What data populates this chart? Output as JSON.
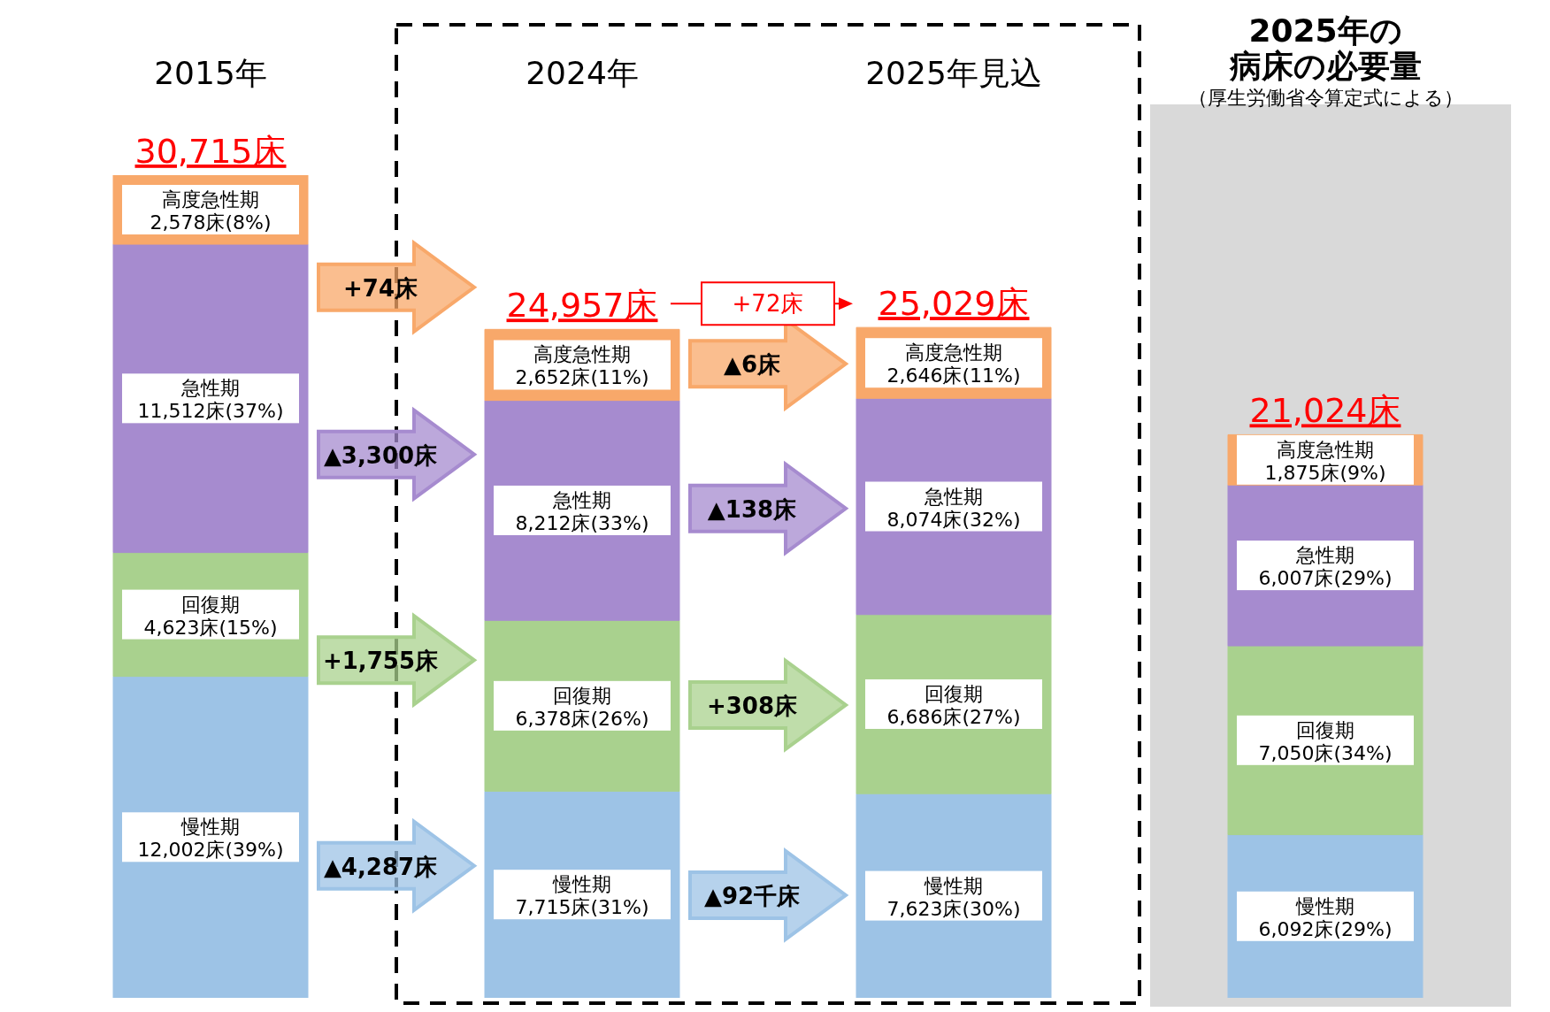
{
  "chart_data": {
    "type": "bar",
    "stacked": true,
    "categories": [
      "2015年",
      "2024年",
      "2025年見込",
      "2025年の病床の必要量"
    ],
    "series": [
      {
        "name": "慢性期",
        "color": "#9dc3e6",
        "values": [
          12002,
          7715,
          7623,
          6092
        ],
        "value_labels": [
          "12,002床(39%)",
          "7,715床(31%)",
          "7,623床(30%)",
          "6,092床(29%)"
        ]
      },
      {
        "name": "回復期",
        "color": "#a9d18e",
        "values": [
          4623,
          6378,
          6686,
          7050
        ],
        "value_labels": [
          "4,623床(15%)",
          "6,378床(26%)",
          "6,686床(27%)",
          "7,050床(34%)"
        ]
      },
      {
        "name": "急性期",
        "color": "#a68bcf",
        "values": [
          11512,
          8212,
          8074,
          6007
        ],
        "value_labels": [
          "11,512床(37%)",
          "8,212床(33%)",
          "8,074床(32%)",
          "6,007床(29%)"
        ]
      },
      {
        "name": "高度急性期",
        "color": "#f8a86a",
        "values": [
          2578,
          2652,
          2646,
          1875
        ],
        "value_labels": [
          "2,578床(8%)",
          "2,652床(11%)",
          "2,646床(11%)",
          "1,875床(9%)"
        ]
      }
    ],
    "totals": [
      "30,715床",
      "24,957床",
      "25,029床",
      "21,024床"
    ],
    "annotations": [
      "+74床",
      "▲3,300床",
      "+1,755床",
      "▲4,287床",
      "+72床",
      "▲6床",
      "▲138床",
      "+308床",
      "▲92千床",
      "（厚生労働省令算定式による）"
    ],
    "legend": false,
    "grid": false
  }
}
